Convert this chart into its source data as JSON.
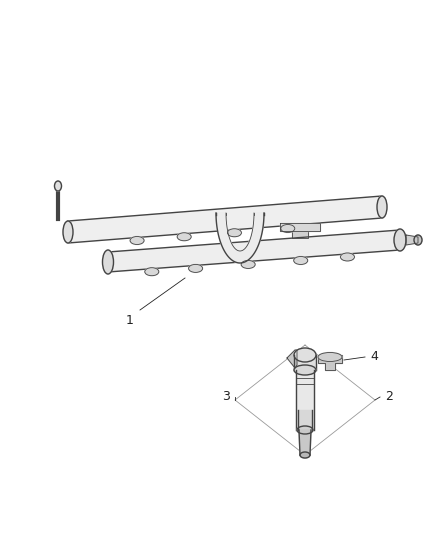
{
  "background_color": "#ffffff",
  "line_color": "#444444",
  "lw": 1.0,
  "tlw": 0.6,
  "callout_color": "#222222",
  "fs": 9,
  "rail_stroke": "#444444",
  "rail_fill": "#f0f0f0",
  "port_fill": "#d8d8d8",
  "arch_fill": "#ececec",
  "inj_fill": "#e0e0e0",
  "inj_dark": "#b8b8b8"
}
